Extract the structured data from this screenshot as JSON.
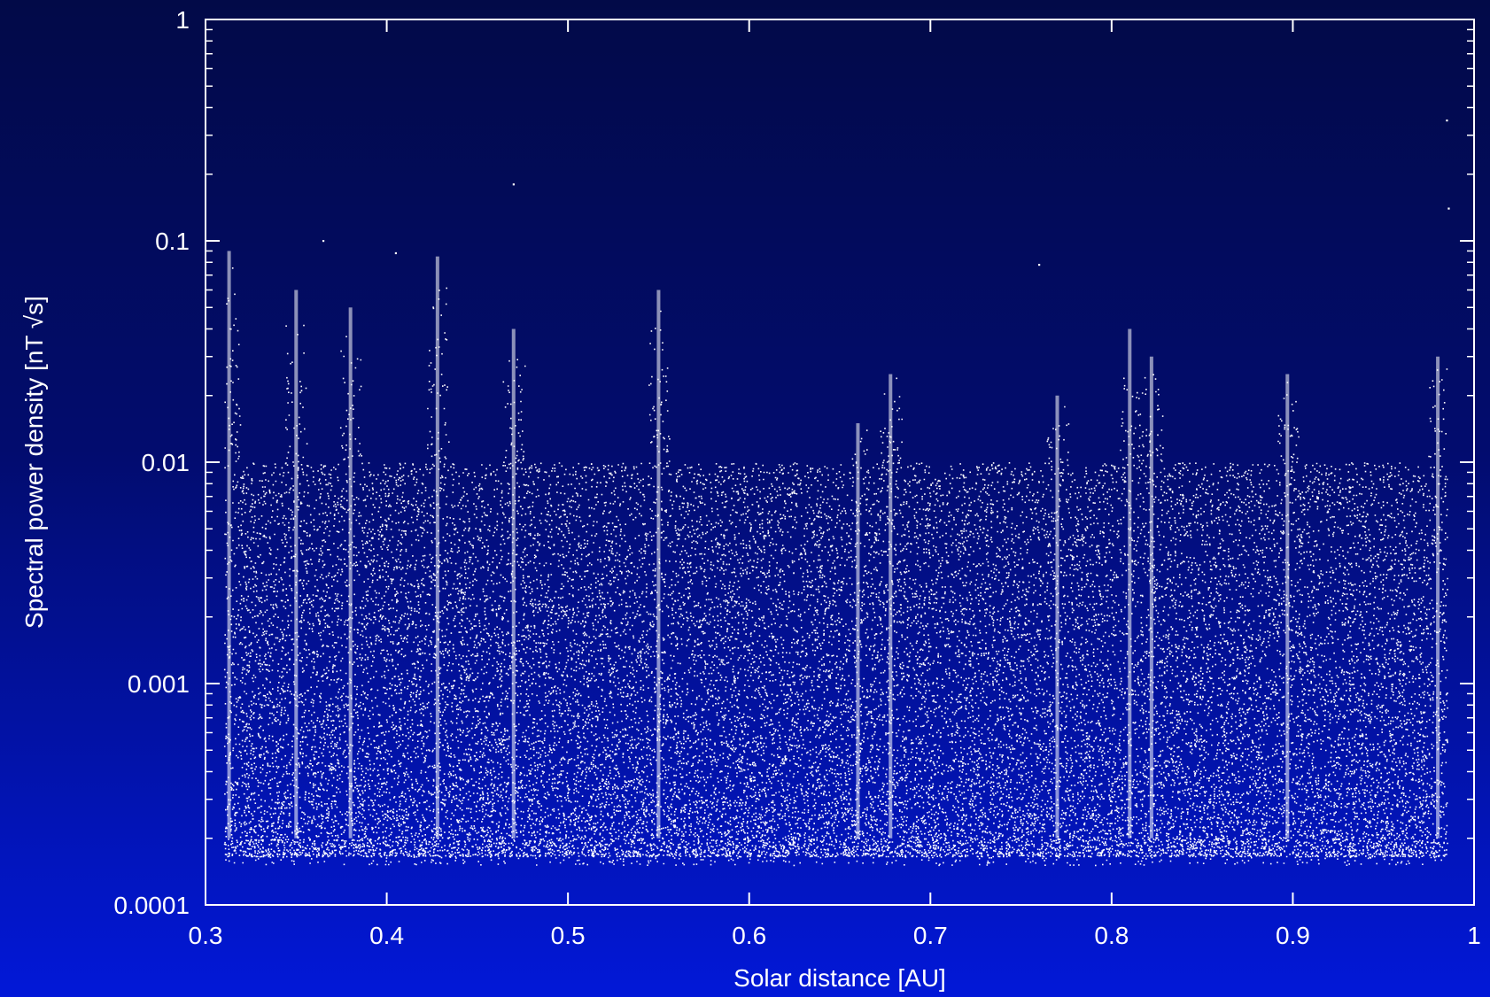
{
  "chart_data": {
    "type": "scatter",
    "xlabel": "Solar distance [AU]",
    "ylabel": "Spectral power density [nT √s]",
    "xlim": [
      0.3,
      1.0
    ],
    "ylim": [
      0.0001,
      1
    ],
    "yscale": "log",
    "x_ticks": [
      0.3,
      0.4,
      0.5,
      0.6,
      0.7,
      0.8,
      0.9,
      1.0
    ],
    "x_tick_labels": [
      "0.3",
      "0.4",
      "0.5",
      "0.6",
      "0.7",
      "0.8",
      "0.9",
      "1"
    ],
    "y_ticks": [
      0.0001,
      0.001,
      0.01,
      0.1,
      1
    ],
    "y_tick_labels": [
      "0.0001",
      "0.001",
      "0.01",
      "0.1",
      "1"
    ],
    "grid": false,
    "point_color": "#ffffff",
    "data_x_range": [
      0.31,
      0.985
    ],
    "floor_y": 0.0002,
    "dense_region_y": [
      0.0002,
      0.01
    ],
    "bands": [
      {
        "x": 0.313,
        "ymax": 0.09
      },
      {
        "x": 0.35,
        "ymax": 0.06
      },
      {
        "x": 0.38,
        "ymax": 0.05
      },
      {
        "x": 0.428,
        "ymax": 0.085
      },
      {
        "x": 0.47,
        "ymax": 0.04
      },
      {
        "x": 0.55,
        "ymax": 0.06
      },
      {
        "x": 0.66,
        "ymax": 0.015
      },
      {
        "x": 0.678,
        "ymax": 0.025
      },
      {
        "x": 0.77,
        "ymax": 0.02
      },
      {
        "x": 0.81,
        "ymax": 0.04
      },
      {
        "x": 0.822,
        "ymax": 0.03
      },
      {
        "x": 0.897,
        "ymax": 0.025
      },
      {
        "x": 0.98,
        "ymax": 0.03
      }
    ],
    "outliers": [
      {
        "x": 0.985,
        "y": 0.35
      },
      {
        "x": 0.986,
        "y": 0.14
      },
      {
        "x": 0.47,
        "y": 0.18
      },
      {
        "x": 0.365,
        "y": 0.1
      },
      {
        "x": 0.76,
        "y": 0.078
      },
      {
        "x": 0.405,
        "y": 0.088
      }
    ]
  }
}
